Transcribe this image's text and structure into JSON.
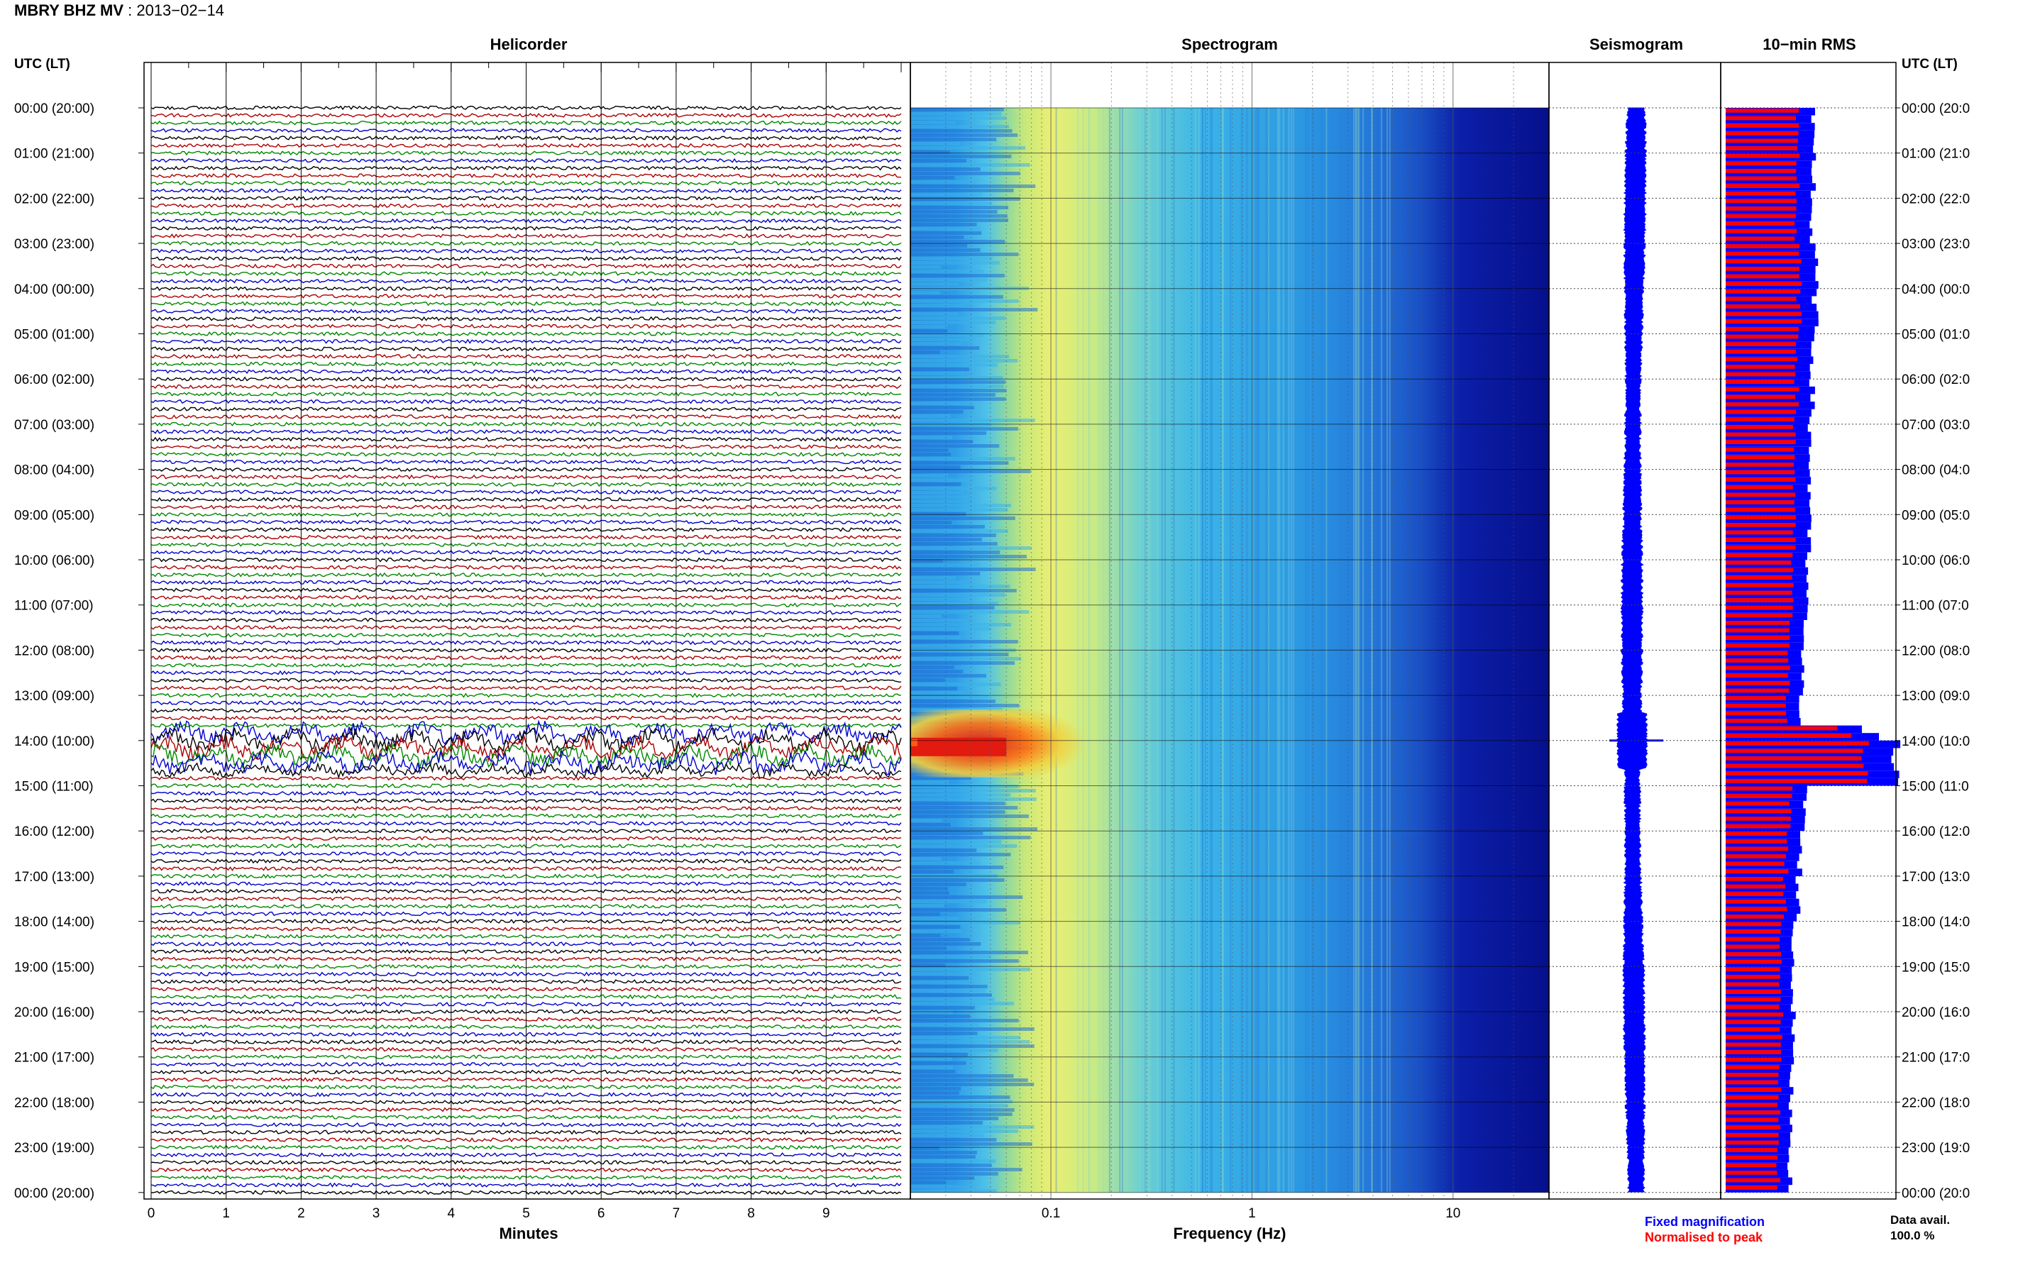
{
  "header": {
    "station": "MBRY BHZ MV",
    "separator": " : ",
    "date": "2013−02−14"
  },
  "panels": {
    "helicorder": "Helicorder",
    "spectrogram": "Spectrogram",
    "seismogram": "Seismogram",
    "rms": "10−min RMS"
  },
  "axes": {
    "left_header": "UTC (LT)",
    "right_header": "UTC (LT)",
    "helicorder_xlabel": "Minutes",
    "spectrogram_xlabel": "Frequency (Hz)"
  },
  "legend": {
    "fixed": "Fixed magnification",
    "normalised": "Normalised to peak",
    "availability_label": "Data avail.",
    "availability_value": "100.0 %"
  },
  "colors": {
    "fixed_magnification": "#0000ff",
    "normalised_to_peak": "#ff0000",
    "trace_cycle": [
      "#000000",
      "#aa0000",
      "#008800",
      "#0000cc"
    ]
  },
  "chart_data": [
    {
      "type": "line",
      "panel": "Helicorder",
      "xlabel": "Minutes",
      "xlim": [
        0,
        10
      ],
      "x_ticks": [
        "0",
        "1",
        "2",
        "3",
        "4",
        "5",
        "6",
        "7",
        "8",
        "9"
      ],
      "row_labels": [
        "00:00 (20:00)",
        "01:00 (21:00)",
        "02:00 (22:00)",
        "03:00 (23:00)",
        "04:00 (00:00)",
        "05:00 (01:00)",
        "06:00 (02:00)",
        "07:00 (03:00)",
        "08:00 (04:00)",
        "09:00 (05:00)",
        "10:00 (06:00)",
        "11:00 (07:00)",
        "12:00 (08:00)",
        "13:00 (09:00)",
        "14:00 (10:00)",
        "15:00 (11:00)",
        "16:00 (12:00)",
        "17:00 (13:00)",
        "18:00 (14:00)",
        "19:00 (15:00)",
        "20:00 (16:00)",
        "21:00 (17:00)",
        "22:00 (18:00)",
        "23:00 (19:00)",
        "00:00 (20:00)"
      ],
      "right_row_labels": [
        "00:00 (20:0",
        "01:00 (21:0",
        "02:00 (22:0",
        "03:00 (23:0",
        "04:00 (00:0",
        "05:00 (01:0",
        "06:00 (02:0",
        "07:00 (03:0",
        "08:00 (04:0",
        "09:00 (05:0",
        "10:00 (06:0",
        "11:00 (07:0",
        "12:00 (08:0",
        "13:00 (09:0",
        "14:00 (10:0",
        "15:00 (11:0",
        "16:00 (12:0",
        "17:00 (13:0",
        "18:00 (14:0",
        "19:00 (15:0",
        "20:00 (16:0",
        "21:00 (17:0",
        "22:00 (18:0",
        "23:00 (19:0",
        "00:00 (20:0"
      ],
      "traces_per_hour": 6,
      "event_window_utc": [
        "13:50",
        "14:40"
      ]
    },
    {
      "type": "heatmap",
      "panel": "Spectrogram",
      "xlabel": "Frequency (Hz)",
      "xscale": "log",
      "xlim": [
        0.02,
        30
      ],
      "x_ticks": [
        "0.1",
        "1",
        "10"
      ],
      "peak_energy": {
        "utc": "14:00",
        "frequency_range_hz": [
          0.02,
          0.06
        ]
      }
    },
    {
      "type": "line",
      "panel": "Seismogram",
      "note_event_utc": "14:00"
    },
    {
      "type": "bar",
      "panel": "10−min RMS",
      "orientation": "horizontal",
      "series": [
        {
          "name": "Fixed magnification",
          "color": "#0000ff"
        },
        {
          "name": "Normalised to peak",
          "color": "#ff0000"
        }
      ],
      "relative_rms_hourly": [
        0.51,
        0.52,
        0.51,
        0.53,
        0.53,
        0.52,
        0.51,
        0.5,
        0.5,
        0.49,
        0.48,
        0.47,
        0.45,
        0.45,
        1.0,
        0.47,
        0.44,
        0.43,
        0.4,
        0.4,
        0.4,
        0.39,
        0.39,
        0.38
      ],
      "peak_utc": "14:00"
    }
  ]
}
